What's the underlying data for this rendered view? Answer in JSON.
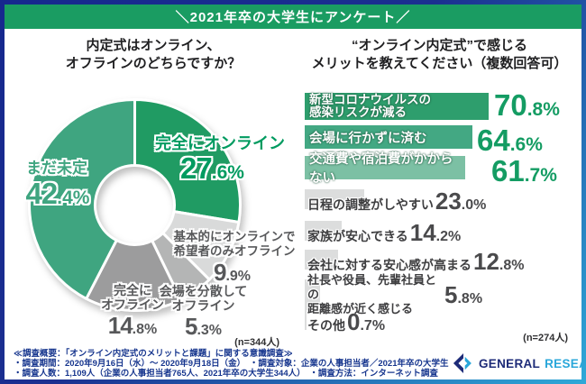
{
  "header": {
    "banner_text": "＼2021年卒の大学生にアンケート／"
  },
  "colors": {
    "banner_green": "#1a9c62",
    "frame_navy": "#16288e",
    "frame_cyan": "#2fa9d8",
    "footer_navy": "#17368e",
    "percent_green": "#149c63",
    "percent_gray": "#4a4a4c"
  },
  "pie_section": {
    "title_lines": [
      "内定式はオンライン、",
      "オフラインのどちらですか？"
    ],
    "n_label": "(n=344人)"
  },
  "bar_section": {
    "title_lines": [
      "“オンライン内定式”で感じる",
      "メリットを教えてください（複数回答可）"
    ],
    "n_label": "(n=274人)"
  },
  "chart_data": [
    {
      "type": "pie",
      "title": "内定式はオンライン、オフラインのどちらですか？",
      "sample": "n=344人",
      "donut": true,
      "start_angle_deg": 0,
      "direction": "clockwise",
      "slices": [
        {
          "label": "完全にオンライン",
          "label_lines": [
            "完全にオンライン"
          ],
          "value": 27.6,
          "display": "27.6%",
          "color": "#209b63",
          "label_color": "#009b60"
        },
        {
          "label": "基本的にオンラインで希望者のみオフライン",
          "label_lines": [
            "基本的にオンラインで",
            "希望者のみオフライン"
          ],
          "value": 9.9,
          "display": "9.9%",
          "color": "#d9dada",
          "label_color": "#57585a"
        },
        {
          "label": "会場を分散してオフライン",
          "label_lines": [
            "会場を分散して",
            "オフライン"
          ],
          "value": 5.3,
          "display": "5.3%",
          "color": "#b4b5b5",
          "label_color": "#57585a"
        },
        {
          "label": "完全にオフライン",
          "label_lines": [
            "完全に",
            "オフライン"
          ],
          "value": 14.8,
          "display": "14.8%",
          "color": "#9c9c9d",
          "label_color": "#57585a"
        },
        {
          "label": "まだ未定",
          "label_lines": [
            "まだ未定"
          ],
          "value": 42.4,
          "display": "42.4%",
          "color": "#3fa580",
          "label_color": "#3fa580"
        }
      ]
    },
    {
      "type": "bar",
      "title": "“オンライン内定式”で感じるメリットを教えてください（複数回答可）",
      "sample": "n=274人",
      "max_value": 70.8,
      "categories": [
        "新型コロナウイルスの感染リスクが減る",
        "会場に行かずに済む",
        "交通費や宿泊費がかからない",
        "日程の調整がしやすい",
        "家族が安心できる",
        "会社に対する安心感が高まる",
        "社長や役員、先輩社員との距離感が近く感じる",
        "その他"
      ],
      "category_lines": [
        [
          "新型コロナウイルスの",
          "感染リスクが減る"
        ],
        [
          "会場に行かずに済む"
        ],
        [
          "交通費や宿泊費がかからない"
        ],
        [
          "日程の調整がしやすい"
        ],
        [
          "家族が安心できる"
        ],
        [
          "会社に対する安心感が高まる"
        ],
        [
          "社長や役員、先輩社員との",
          "距離感が近く感じる"
        ],
        [
          "その他"
        ]
      ],
      "values": [
        70.8,
        64.6,
        61.7,
        23.0,
        14.2,
        12.8,
        5.8,
        0.7
      ],
      "displays": [
        "70.8%",
        "64.6%",
        "61.7%",
        "23.0%",
        "14.2%",
        "12.8%",
        "5.8%",
        "0.7%"
      ],
      "bar_colors": [
        "#2e9e6d",
        "#43a883",
        "#7cc0a4",
        "#dcdddd",
        "#dcdddd",
        "#dcdddd",
        "#dcdddd",
        "#dcdddd"
      ]
    }
  ],
  "footer": {
    "lines": [
      "≪調査概要：「オンライン内定式のメリットと課題」に関する意識調査≫",
      "・調査期間：2020年9月16日（水）～ 2020年9月18日（金）　・調査対象：企業の人事担当者／2021年卒の大学生",
      "・調査人数：1,109人（企業の人事担当者765人、2021年卒の大学生344人）　・調査方法：インターネット調査"
    ]
  },
  "logo": {
    "brand_left": "GENERAL",
    "brand_right": "RESEARCH"
  }
}
